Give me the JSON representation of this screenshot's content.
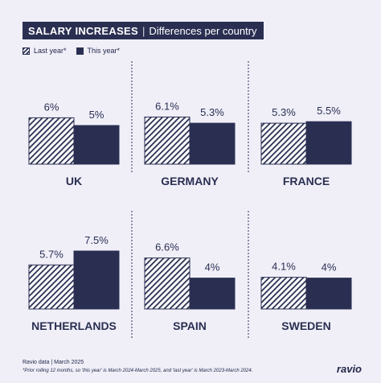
{
  "header": {
    "title": "SALARY INCREASES",
    "separator": "|",
    "subtitle": "Differences per country"
  },
  "legend": {
    "last_year": "Last year*",
    "this_year": "This year*"
  },
  "colors": {
    "dark": "#2a2f52",
    "background": "#f0eff8"
  },
  "chart_data": [
    {
      "type": "bar",
      "title": "UK",
      "categories": [
        "Last year*",
        "This year*"
      ],
      "values": [
        6,
        5
      ],
      "labels": [
        "6%",
        "5%"
      ]
    },
    {
      "type": "bar",
      "title": "GERMANY",
      "categories": [
        "Last year*",
        "This year*"
      ],
      "values": [
        6.1,
        5.3
      ],
      "labels": [
        "6.1%",
        "5.3%"
      ]
    },
    {
      "type": "bar",
      "title": "FRANCE",
      "categories": [
        "Last year*",
        "This year*"
      ],
      "values": [
        5.3,
        5.5
      ],
      "labels": [
        "5.3%",
        "5.5%"
      ]
    },
    {
      "type": "bar",
      "title": "NETHERLANDS",
      "categories": [
        "Last year*",
        "This year*"
      ],
      "values": [
        5.7,
        7.5
      ],
      "labels": [
        "5.7%",
        "7.5%"
      ]
    },
    {
      "type": "bar",
      "title": "SPAIN",
      "categories": [
        "Last year*",
        "This year*"
      ],
      "values": [
        6.6,
        4
      ],
      "labels": [
        "6.6%",
        "4%"
      ]
    },
    {
      "type": "bar",
      "title": "SWEDEN",
      "categories": [
        "Last year*",
        "This year*"
      ],
      "values": [
        4.1,
        4
      ],
      "labels": [
        "4.1%",
        "4%"
      ]
    }
  ],
  "footer": {
    "source": "Ravio data | March 2025",
    "note": "*Prior rolling 12 months, so 'this year' is March 2024-March 2025, and 'last year' is March 2023-March 2024.",
    "brand": "ravio"
  }
}
